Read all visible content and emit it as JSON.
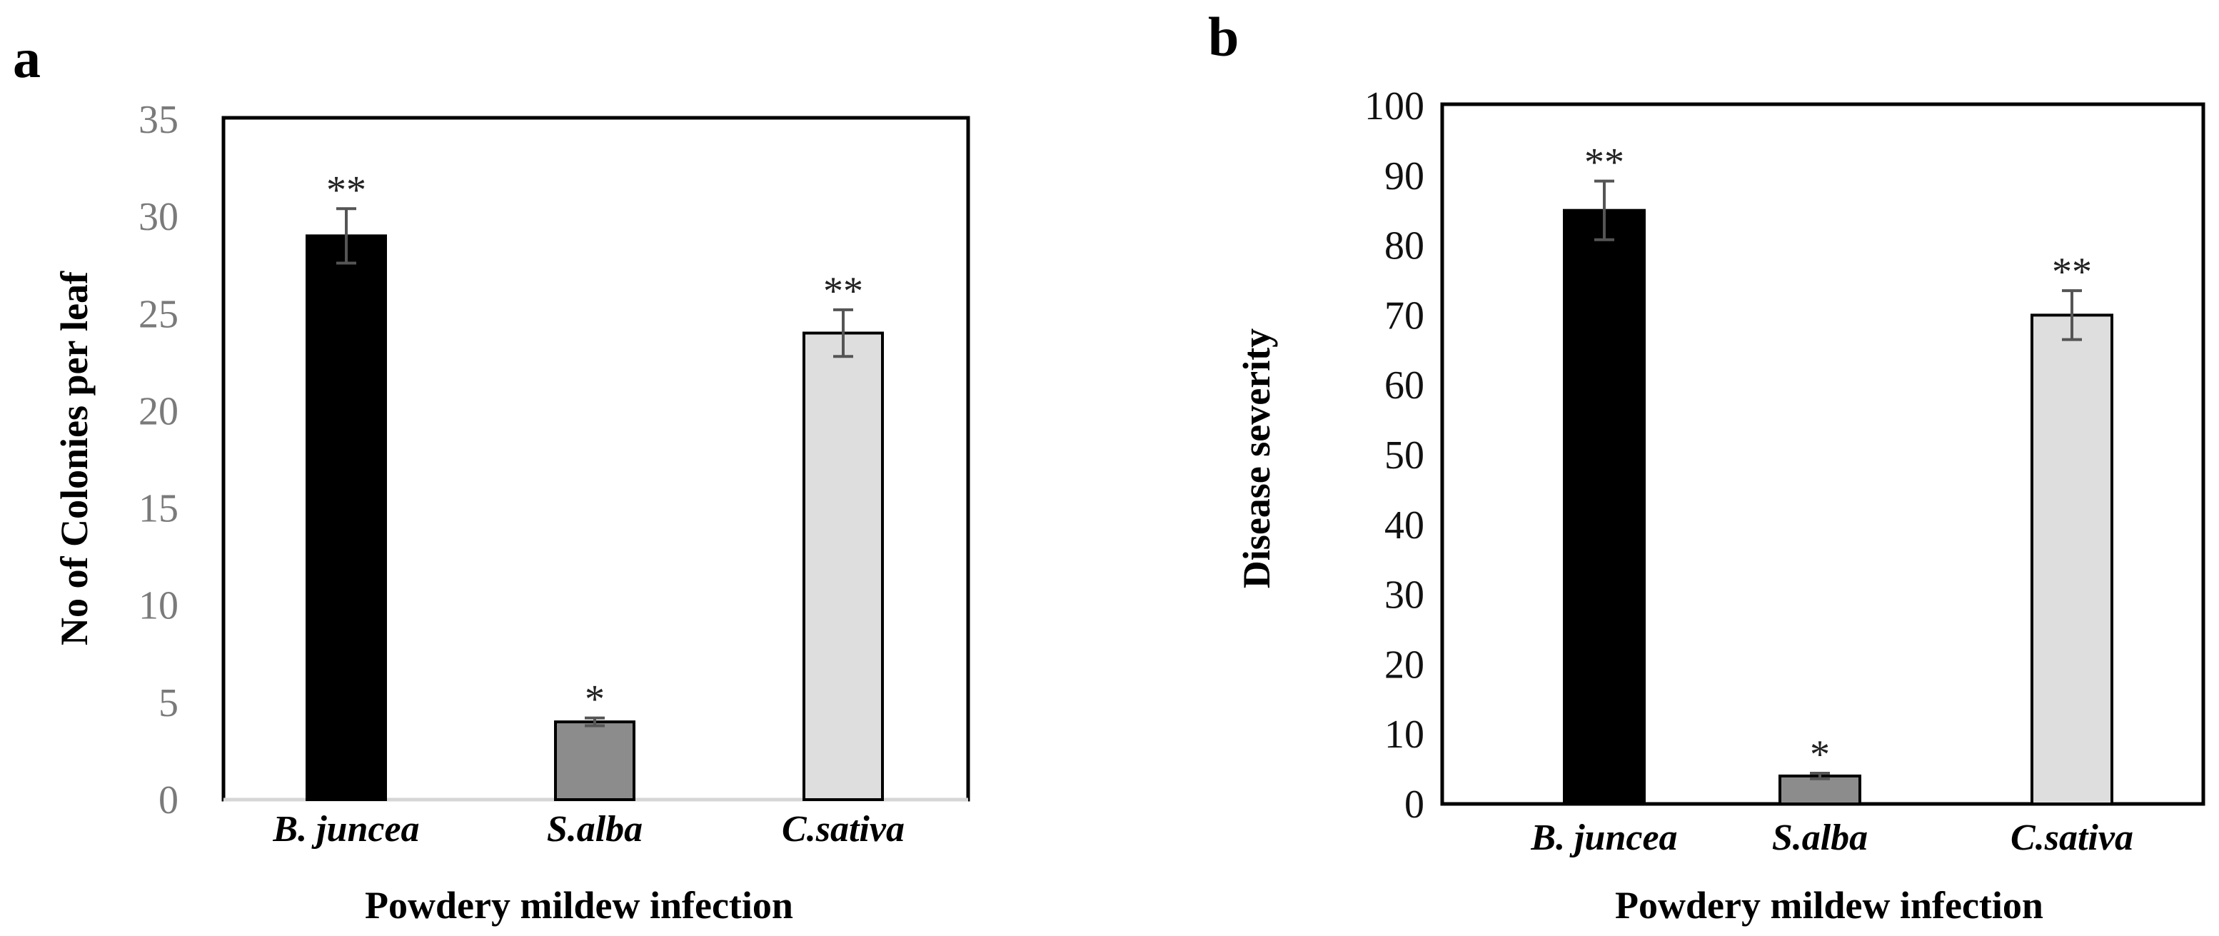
{
  "colors": {
    "B. juncea": "#000000",
    "S.alba": "#8c8c8c",
    "C.sativa": "#dedede",
    "errorbar": "#555555"
  },
  "chart_data": [
    {
      "panel": "a",
      "type": "bar",
      "title": "",
      "xlabel": "Powdery mildew infection",
      "ylabel": "No of Colonies per leaf",
      "categories": [
        "B. juncea",
        "S.alba",
        "C.sativa"
      ],
      "values": [
        29,
        4,
        24
      ],
      "errors": [
        1.4,
        0.2,
        1.2
      ],
      "significance": [
        "**",
        "*",
        "**"
      ],
      "ylim": [
        0,
        35
      ],
      "yticks": [
        0,
        5,
        10,
        15,
        20,
        25,
        30,
        35
      ],
      "grid": false
    },
    {
      "panel": "b",
      "type": "bar",
      "title": "",
      "xlabel": "Powdery mildew infection",
      "ylabel": "Disease severity",
      "categories": [
        "B. juncea",
        "S.alba",
        "C.sativa"
      ],
      "values": [
        85,
        4,
        70
      ],
      "errors": [
        4.2,
        0.4,
        3.5
      ],
      "significance": [
        "**",
        "*",
        "**"
      ],
      "ylim": [
        0,
        100
      ],
      "yticks": [
        0,
        10,
        20,
        30,
        40,
        50,
        60,
        70,
        80,
        90,
        100
      ],
      "grid": false
    }
  ]
}
